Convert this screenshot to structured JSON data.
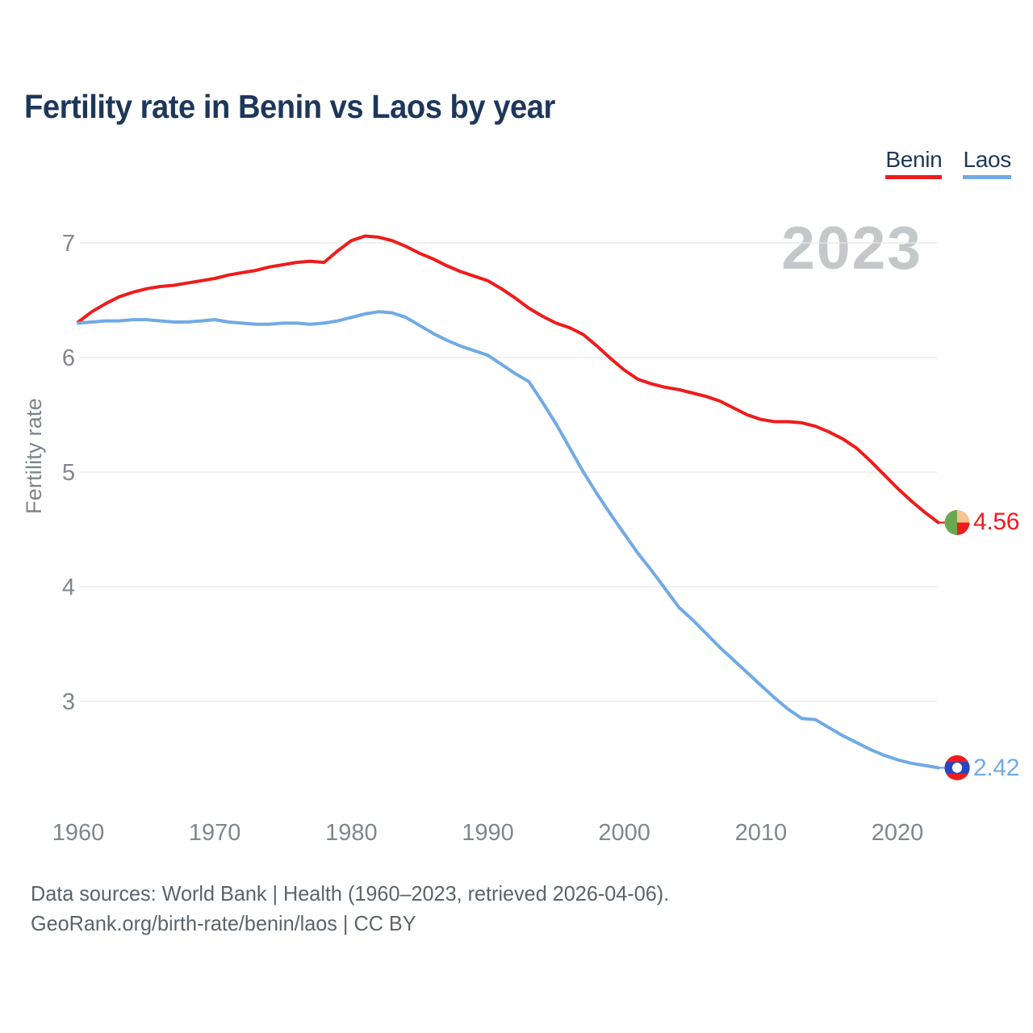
{
  "title": "Fertility rate in Benin vs Laos by year",
  "watermark": "2023",
  "legend": [
    {
      "label": "Benin",
      "color": "#ee1c1c"
    },
    {
      "label": "Laos",
      "color": "#71aae4"
    }
  ],
  "y_axis": {
    "label": "Fertility rate",
    "ticks": [
      7,
      6,
      5,
      4,
      3
    ]
  },
  "x_axis": {
    "ticks": [
      1960,
      1970,
      1980,
      1990,
      2000,
      2010,
      2020
    ]
  },
  "footer": {
    "line1": "Data sources: World Bank | Health (1960–2023, retrieved 2026-04-06).",
    "line2": "GeoRank.org/birth-rate/benin/laos | CC BY"
  },
  "colors": {
    "grid": "#e8e8ea",
    "axis_text": "#7f868e",
    "title_text": "#1d375a"
  },
  "flags": {
    "benin": {
      "green": "#6aa84f",
      "yellow": "#f6c48c",
      "red": "#ee1c1c"
    },
    "laos": {
      "red": "#ee1c1c",
      "blue": "#2846be",
      "white": "#ffffff"
    }
  },
  "chart_data": {
    "type": "line",
    "title": "Fertility rate in Benin vs Laos by year",
    "xlabel": "",
    "ylabel": "Fertility rate",
    "xlim": [
      1960,
      2023
    ],
    "ylim": [
      2.2,
      7.3
    ],
    "grid": "horizontal",
    "legend_position": "top-right",
    "x_start_year": 1960,
    "x_end_year": 2023,
    "series": [
      {
        "name": "Benin",
        "color": "#ee1c1c",
        "end_label": "4.56",
        "values": [
          6.31,
          6.4,
          6.47,
          6.53,
          6.57,
          6.6,
          6.62,
          6.63,
          6.65,
          6.67,
          6.69,
          6.72,
          6.74,
          6.76,
          6.79,
          6.81,
          6.83,
          6.84,
          6.83,
          6.93,
          7.02,
          7.06,
          7.05,
          7.02,
          6.97,
          6.91,
          6.86,
          6.8,
          6.75,
          6.71,
          6.67,
          6.6,
          6.52,
          6.43,
          6.36,
          6.3,
          6.26,
          6.2,
          6.1,
          5.99,
          5.89,
          5.81,
          5.77,
          5.74,
          5.72,
          5.69,
          5.66,
          5.62,
          5.56,
          5.5,
          5.46,
          5.44,
          5.44,
          5.43,
          5.4,
          5.35,
          5.29,
          5.21,
          5.1,
          4.98,
          4.86,
          4.75,
          4.65,
          4.56
        ]
      },
      {
        "name": "Laos",
        "color": "#71aae4",
        "end_label": "2.42",
        "values": [
          6.3,
          6.31,
          6.32,
          6.32,
          6.33,
          6.33,
          6.32,
          6.31,
          6.31,
          6.32,
          6.33,
          6.31,
          6.3,
          6.29,
          6.29,
          6.3,
          6.3,
          6.29,
          6.3,
          6.32,
          6.35,
          6.38,
          6.4,
          6.39,
          6.35,
          6.28,
          6.21,
          6.15,
          6.1,
          6.06,
          6.02,
          5.94,
          5.86,
          5.79,
          5.61,
          5.42,
          5.21,
          5.0,
          4.81,
          4.63,
          4.46,
          4.29,
          4.14,
          3.98,
          3.82,
          3.71,
          3.59,
          3.47,
          3.36,
          3.25,
          3.14,
          3.03,
          2.93,
          2.85,
          2.84,
          2.77,
          2.7,
          2.64,
          2.58,
          2.53,
          2.49,
          2.46,
          2.44,
          2.42
        ]
      }
    ]
  }
}
